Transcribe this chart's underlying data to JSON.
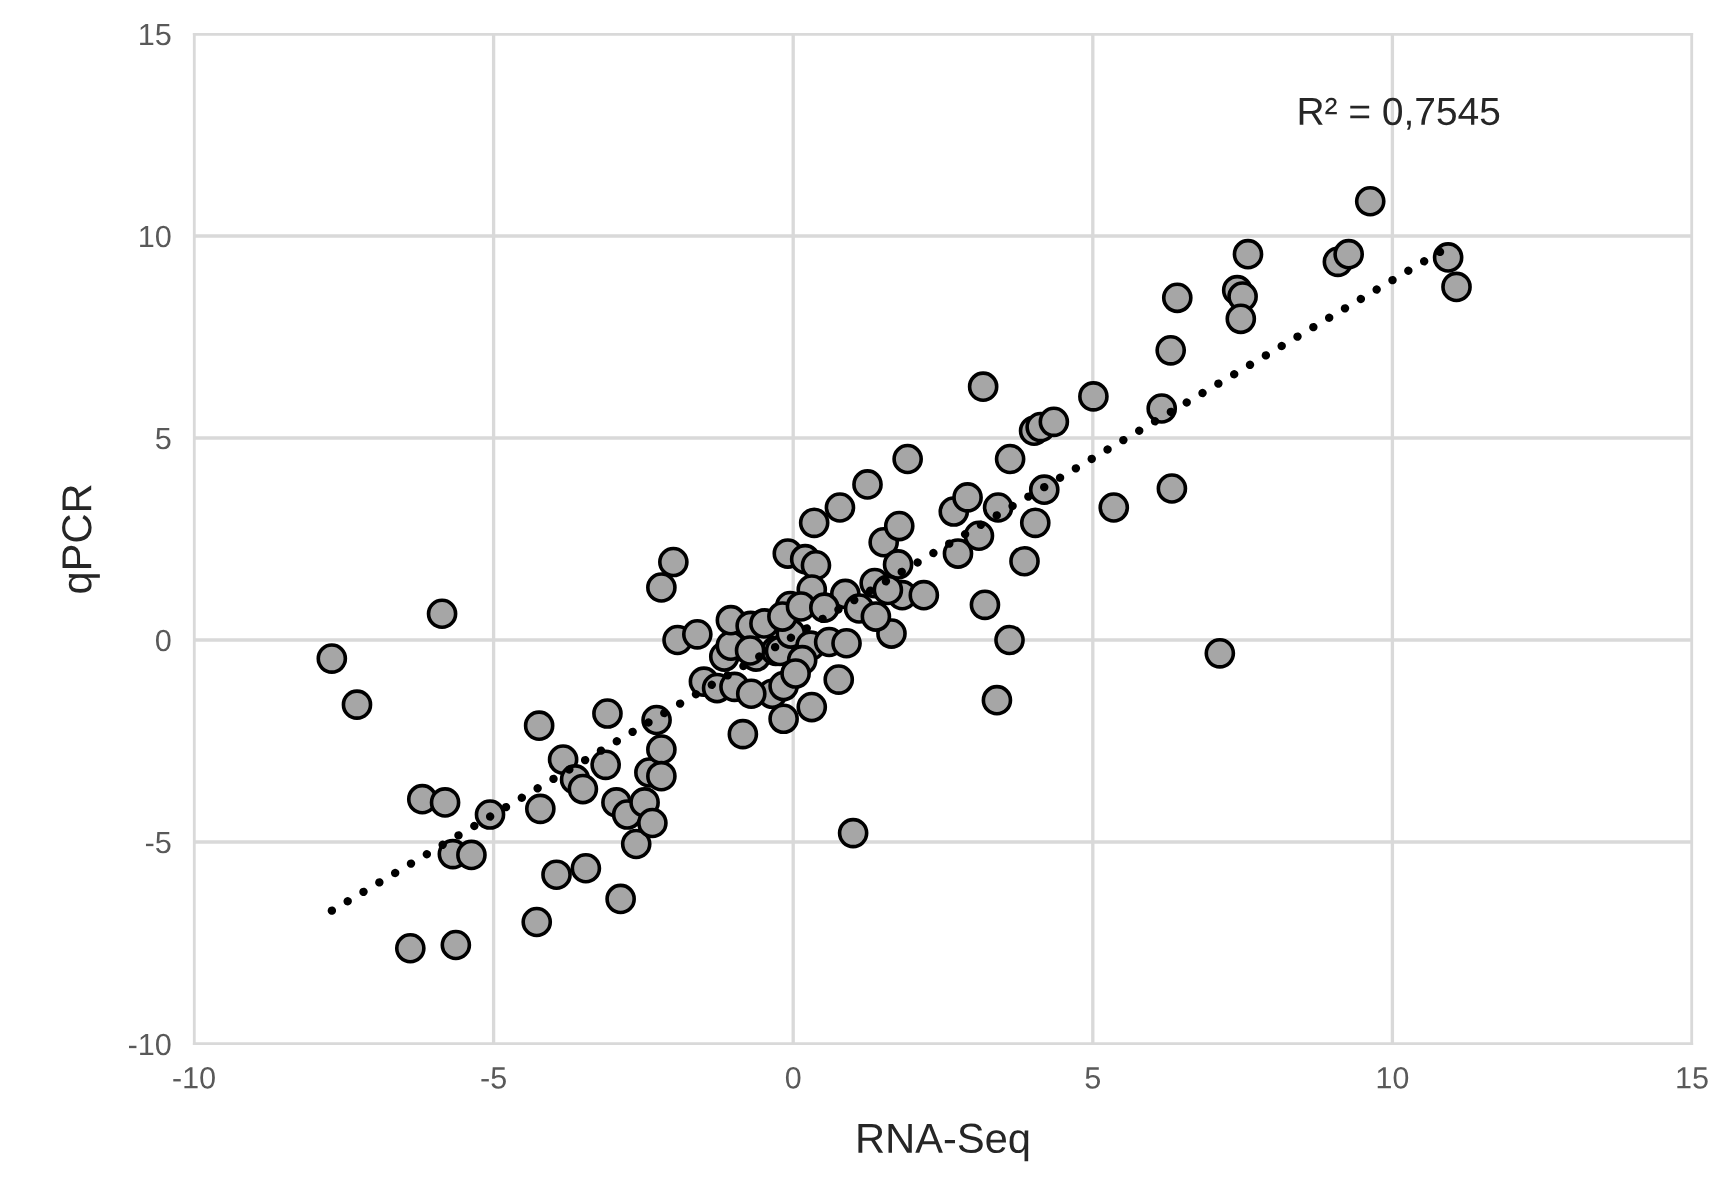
{
  "chart_data": {
    "type": "scatter",
    "xlabel": "RNA-Seq",
    "ylabel": "qPCR",
    "xlim": [
      -10,
      15
    ],
    "ylim": [
      -10,
      15
    ],
    "xticks": [
      -10,
      -5,
      0,
      5,
      10,
      15
    ],
    "yticks": [
      -10,
      -5,
      0,
      5,
      10,
      15
    ],
    "grid": true,
    "annotations": [
      "R² = 0,7545"
    ],
    "series": [
      {
        "marker": "circle",
        "color": "#a6a6a6",
        "x": [
          -7.7,
          -7.28,
          -5.86,
          -6.19,
          -5.81,
          -6.39,
          -5.63,
          -5.68,
          -5.37,
          -5.06,
          -4.24,
          -4.22,
          -4.28,
          -3.95,
          -3.84,
          -3.64,
          -3.51,
          -3.46,
          -3.1,
          -3.13,
          -2.95,
          -2.77,
          -2.88,
          -2.62,
          -2.48,
          -2.4,
          -2.35,
          -2.2,
          -2.2,
          -2.28,
          -2.2,
          -2.0,
          -1.93,
          -1.6,
          -1.49,
          -1.27,
          -1.15,
          -1.04,
          -1.04,
          -0.84,
          -0.71,
          -0.62,
          -0.35,
          -0.29,
          -0.22,
          -0.16,
          -0.16,
          -0.09,
          -0.05,
          -0.04,
          0.2,
          0.29,
          0.31,
          0.35,
          0.38,
          0.31,
          0.6,
          0.78,
          0.76,
          0.89,
          0.87,
          1.0,
          1.24,
          1.51,
          1.64,
          1.77,
          1.75,
          1.82,
          1.91,
          2.18,
          2.68,
          2.75,
          2.91,
          3.1,
          3.17,
          3.2,
          3.42,
          3.4,
          3.61,
          3.62,
          3.86,
          4.04,
          4.02,
          4.13,
          4.19,
          4.35,
          5.01,
          5.35,
          6.15,
          6.32,
          6.3,
          6.41,
          7.12,
          7.41,
          7.5,
          7.47,
          7.59,
          9.09,
          9.27,
          9.63,
          10.93,
          11.07,
          -0.72,
          -0.48,
          -0.18,
          0.13,
          0.52,
          1.36,
          1.58,
          1.1,
          1.38,
          0.15,
          0.04,
          -0.98,
          -0.7
        ],
        "values": [
          -0.46,
          -1.6,
          0.65,
          -3.94,
          -4.02,
          -7.63,
          -7.55,
          -5.3,
          -5.32,
          -4.32,
          -2.12,
          -4.18,
          -6.98,
          -5.81,
          -2.96,
          -3.45,
          -3.69,
          -5.65,
          -1.82,
          -3.09,
          -4.02,
          -4.32,
          -6.41,
          -5.05,
          -4.02,
          -3.28,
          -4.53,
          -2.71,
          -3.37,
          -1.98,
          1.3,
          1.93,
          0.0,
          0.14,
          -1.03,
          -1.19,
          -0.41,
          -0.14,
          0.49,
          -2.33,
          0.35,
          -0.41,
          -1.33,
          -0.27,
          -0.27,
          -1.14,
          -1.95,
          2.14,
          0.84,
          0.16,
          2.0,
          -0.14,
          -1.66,
          2.9,
          1.85,
          1.25,
          -0.05,
          3.28,
          -0.98,
          -0.08,
          1.14,
          -4.78,
          3.85,
          2.42,
          0.16,
          2.82,
          1.87,
          1.11,
          4.48,
          1.11,
          3.18,
          2.14,
          3.53,
          2.58,
          6.27,
          0.87,
          3.28,
          -1.49,
          0.0,
          4.48,
          1.95,
          2.9,
          5.18,
          5.27,
          3.72,
          5.4,
          6.03,
          3.28,
          5.73,
          3.75,
          7.17,
          8.47,
          -0.33,
          8.66,
          8.5,
          7.95,
          9.55,
          9.36,
          9.55,
          10.86,
          9.47,
          8.74,
          -0.26,
          0.41,
          0.58,
          0.83,
          0.8,
          1.41,
          1.24,
          0.78,
          0.58,
          -0.5,
          -0.83,
          -1.16,
          -1.33
        ]
      },
      {
        "type": "line",
        "color": "#000000",
        "line_style": "dotted",
        "marker": "none",
        "x": [
          -7.7,
          10.9
        ],
        "values": [
          -6.7,
          9.7
        ]
      }
    ]
  }
}
